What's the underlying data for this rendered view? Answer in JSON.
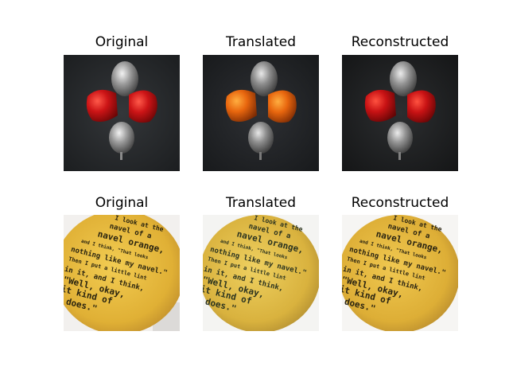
{
  "rows": [
    {
      "titles": [
        "Original",
        "Translated",
        "Reconstructed"
      ]
    },
    {
      "titles": [
        "Original",
        "Translated",
        "Reconstructed"
      ]
    }
  ],
  "orange_text_lines": [
    "I look at the",
    "navel of a",
    "navel orange,",
    "and I think, \"That looks",
    "nothing like my navel.\"",
    "Then I put a little lint",
    "in it, and I think,",
    "\"Well, okay,",
    "it kind of",
    "does.\""
  ],
  "colors": {
    "pepper_red": "#c8161a",
    "pepper_orange": "#e8660e",
    "orange_yellow": "#e6b43a",
    "dark_background": "#2a2c2e"
  }
}
